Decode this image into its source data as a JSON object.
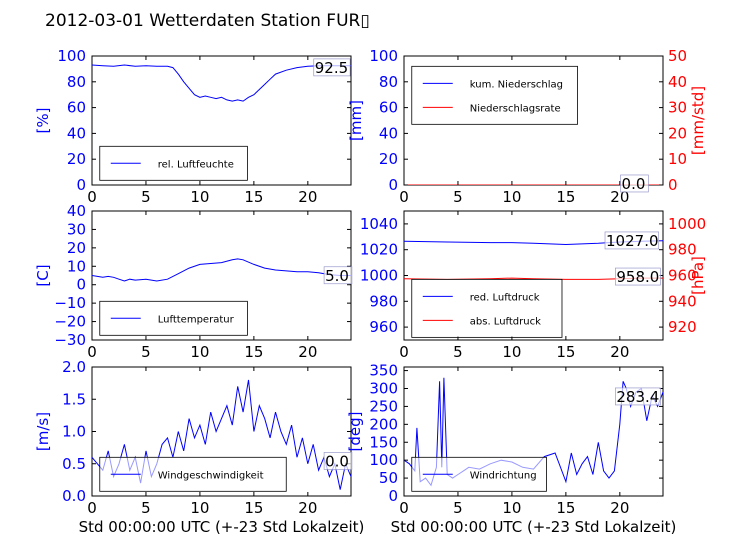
{
  "title": "2012-03-01 Wetterdaten Station FUR▯",
  "colors": {
    "left_axis": "#0000ff",
    "right_axis": "#ff0000",
    "text": "#000000",
    "series_blue": "#0000ff",
    "series_red": "#ff0000"
  },
  "chart_data": [
    {
      "id": "humidity",
      "type": "line",
      "ylabel": "[%]",
      "ylim": [
        0,
        100
      ],
      "yticks": [
        "0",
        "20",
        "40",
        "60",
        "80",
        "100"
      ],
      "xlim": [
        0,
        24
      ],
      "xticks": [
        "0",
        "5",
        "10",
        "15",
        "20"
      ],
      "xlabel": "",
      "annotation": "92.5",
      "legend": {
        "placement": "lower-left",
        "entries": [
          "rel. Luftfeuchte"
        ]
      },
      "series": [
        {
          "name": "rel. Luftfeuchte",
          "color": "#0000ff",
          "axis": "left",
          "x": [
            0,
            1,
            2,
            3,
            4,
            5,
            6,
            7,
            7.5,
            8,
            8.5,
            9,
            9.5,
            10,
            10.5,
            11,
            11.5,
            12,
            12.5,
            13,
            13.5,
            14,
            14.5,
            15,
            15.5,
            16,
            16.5,
            17,
            18,
            19,
            20,
            21,
            22,
            23,
            24
          ],
          "y": [
            93,
            92.5,
            92,
            93,
            92,
            92.5,
            92,
            92,
            91,
            86,
            80,
            75,
            70,
            68,
            69,
            68,
            67,
            68,
            66,
            65,
            66,
            65,
            68,
            70,
            74,
            78,
            82,
            86,
            89,
            91,
            92,
            92.5,
            92.5,
            92.5,
            92.5
          ]
        }
      ]
    },
    {
      "id": "precip",
      "type": "line",
      "ylabel": "[mm]",
      "ylim": [
        0,
        100
      ],
      "yticks": [
        "0",
        "20",
        "40",
        "60",
        "80",
        "100"
      ],
      "ylabel_right": "[mm/std]",
      "ylim_right": [
        0,
        50
      ],
      "yticks_right": [
        "0",
        "10",
        "20",
        "30",
        "40",
        "50"
      ],
      "xlim": [
        0,
        24
      ],
      "xticks": [
        "0",
        "5",
        "10",
        "15",
        "20"
      ],
      "xlabel": "",
      "annotation": "0.0",
      "legend": {
        "placement": "upper-left",
        "entries": [
          "kum. Niederschlag",
          "Niederschlagsrate"
        ]
      },
      "series": [
        {
          "name": "kum. Niederschlag",
          "color": "#0000ff",
          "axis": "left",
          "x": [
            0,
            24
          ],
          "y": [
            0,
            0
          ]
        },
        {
          "name": "Niederschlagsrate",
          "color": "#ff0000",
          "axis": "right",
          "x": [
            0,
            24
          ],
          "y": [
            0,
            0
          ]
        }
      ]
    },
    {
      "id": "temperature",
      "type": "line",
      "ylabel": "[C]",
      "ylim": [
        -30,
        40
      ],
      "yticks": [
        "−30",
        "−20",
        "−10",
        "0",
        "10",
        "20",
        "30",
        "40"
      ],
      "xlim": [
        0,
        24
      ],
      "xticks": [
        "0",
        "5",
        "10",
        "15",
        "20"
      ],
      "xlabel": "",
      "annotation": "5.0",
      "legend": {
        "placement": "lower-left",
        "entries": [
          "Lufttemperatur"
        ]
      },
      "series": [
        {
          "name": "Lufttemperatur",
          "color": "#0000ff",
          "axis": "left",
          "x": [
            0,
            0.5,
            1,
            1.5,
            2,
            2.5,
            3,
            3.5,
            4,
            5,
            6,
            7,
            8,
            9,
            10,
            11,
            12,
            13,
            13.5,
            14,
            15,
            16,
            17,
            18,
            19,
            20,
            21,
            22,
            23,
            24
          ],
          "y": [
            5,
            4.5,
            4,
            4.5,
            4,
            3,
            2,
            3,
            2.5,
            3,
            2,
            3,
            6,
            9,
            11,
            11.5,
            12,
            13.5,
            14,
            13.5,
            11,
            9,
            8,
            7.5,
            7,
            7,
            6.5,
            5.5,
            5,
            5
          ]
        }
      ]
    },
    {
      "id": "pressure",
      "type": "line",
      "ylabel": "",
      "ylim": [
        950,
        1050
      ],
      "yticks": [
        "960",
        "980",
        "1000",
        "1020",
        "1040"
      ],
      "ylabel_right": "[hPa]",
      "ylim_right": [
        910,
        1010
      ],
      "yticks_right": [
        "920",
        "940",
        "960",
        "980",
        "1000"
      ],
      "xlim": [
        0,
        24
      ],
      "xticks": [
        "0",
        "5",
        "10",
        "15",
        "20"
      ],
      "xlabel": "",
      "annotations": [
        "1027.0",
        "958.0"
      ],
      "legend": {
        "placement": "lower-left",
        "entries": [
          "red. Luftdruck",
          "abs. Luftdruck"
        ]
      },
      "series": [
        {
          "name": "red. Luftdruck",
          "color": "#0000ff",
          "axis": "left",
          "x": [
            0,
            4,
            8,
            10,
            12,
            15,
            18,
            20,
            22,
            24
          ],
          "y": [
            1026.5,
            1026,
            1025.5,
            1025.5,
            1025,
            1024,
            1025,
            1026,
            1026.5,
            1027
          ]
        },
        {
          "name": "abs. Luftdruck",
          "color": "#ff0000",
          "axis": "right",
          "x": [
            0,
            4,
            8,
            10,
            12,
            15,
            18,
            20,
            22,
            24
          ],
          "y": [
            957.5,
            957,
            957.5,
            958,
            957.5,
            957,
            957,
            957.5,
            958,
            958
          ]
        }
      ]
    },
    {
      "id": "wind",
      "type": "line",
      "ylabel": "[m/s]",
      "ylim": [
        0,
        2
      ],
      "yticks": [
        "0.0",
        "0.5",
        "1.0",
        "1.5",
        "2.0"
      ],
      "xlim": [
        0,
        24
      ],
      "xticks": [
        "0",
        "5",
        "10",
        "15",
        "20"
      ],
      "xlabel": "Std 00:00:00 UTC (+-23 Std Lokalzeit)",
      "annotation": "0.0",
      "legend": {
        "placement": "lower-center",
        "entries": [
          "Windgeschwindigkeit"
        ]
      },
      "series": [
        {
          "name": "Windgeschwindigkeit",
          "color": "#0000ff",
          "axis": "left",
          "x": [
            0,
            0.5,
            1,
            1.5,
            2,
            2.5,
            3,
            3.5,
            4,
            4.5,
            5,
            5.5,
            6,
            6.5,
            7,
            7.5,
            8,
            8.5,
            9,
            9.5,
            10,
            10.5,
            11,
            11.5,
            12,
            12.5,
            13,
            13.5,
            14,
            14.5,
            15,
            15.5,
            16,
            16.5,
            17,
            17.5,
            18,
            18.5,
            19,
            19.5,
            20,
            20.5,
            21,
            21.5,
            22,
            22.5,
            23,
            23.5,
            24
          ],
          "y": [
            0.6,
            0.5,
            0.4,
            0.7,
            0.3,
            0.5,
            0.8,
            0.4,
            0.6,
            0.2,
            0.7,
            0.3,
            0.5,
            0.8,
            0.9,
            0.6,
            1.0,
            0.7,
            1.2,
            0.9,
            1.1,
            0.8,
            1.3,
            1.0,
            1.2,
            1.4,
            1.1,
            1.7,
            1.3,
            1.8,
            1.0,
            1.4,
            1.2,
            0.9,
            1.3,
            1.0,
            0.8,
            1.1,
            0.6,
            0.9,
            0.5,
            0.8,
            0.4,
            0.6,
            0.3,
            0.5,
            0.1,
            0.5,
            0.3
          ]
        }
      ]
    },
    {
      "id": "winddir",
      "type": "line",
      "ylabel": "[deg]",
      "ylim": [
        0,
        360
      ],
      "yticks": [
        "0",
        "50",
        "100",
        "150",
        "200",
        "250",
        "300",
        "350"
      ],
      "xlim": [
        0,
        24
      ],
      "xticks": [
        "0",
        "5",
        "10",
        "15",
        "20"
      ],
      "xlabel": "Std 00:00:00 UTC (+-23 Std Lokalzeit)",
      "annotation": "283.4",
      "legend": {
        "placement": "lower-left",
        "entries": [
          "Windrichtung"
        ]
      },
      "series": [
        {
          "name": "Windrichtung",
          "color": "#0000ff",
          "axis": "left",
          "x": [
            0,
            0.5,
            1,
            1.2,
            1.5,
            2,
            2.5,
            3,
            3.3,
            3.5,
            3.7,
            4,
            4.5,
            5,
            5.5,
            6,
            7,
            8,
            9,
            10,
            11,
            12,
            13,
            14,
            15,
            15.5,
            16,
            16.5,
            17,
            17.5,
            18,
            18.5,
            19,
            19.5,
            20,
            20.3,
            20.6,
            21,
            21.5,
            22,
            22.5,
            23,
            23.5,
            24
          ],
          "y": [
            100,
            90,
            70,
            190,
            40,
            50,
            30,
            80,
            320,
            80,
            330,
            60,
            50,
            60,
            70,
            80,
            75,
            90,
            100,
            95,
            80,
            75,
            110,
            120,
            40,
            120,
            60,
            90,
            110,
            60,
            150,
            70,
            50,
            70,
            200,
            320,
            300,
            250,
            290,
            300,
            210,
            280,
            250,
            290
          ]
        }
      ]
    }
  ]
}
